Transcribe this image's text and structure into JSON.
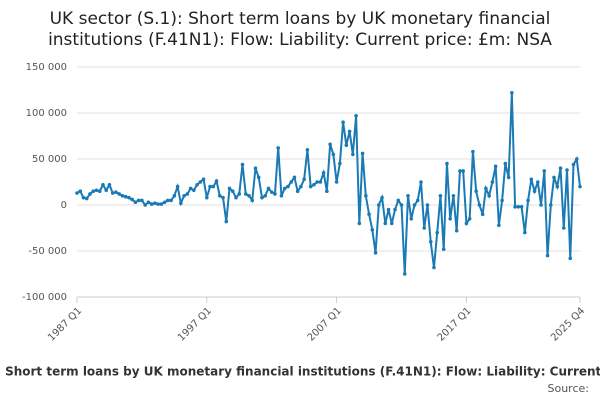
{
  "chart_data": {
    "type": "line",
    "title": [
      "UK sector (S.1): Short term loans by UK monetary financial",
      "institutions (F.41N1): Flow: Liability: Current price: £m: NSA"
    ],
    "source": "Source:",
    "categories": [
      "1987 Q1",
      null,
      null,
      null,
      null,
      null,
      null,
      null,
      null,
      null,
      null,
      null,
      null,
      null,
      null,
      null,
      null,
      null,
      null,
      null,
      null,
      null,
      null,
      null,
      null,
      null,
      null,
      null,
      null,
      null,
      null,
      null,
      null,
      null,
      null,
      null,
      null,
      null,
      null,
      null,
      "1997 Q1",
      null,
      null,
      null,
      null,
      null,
      null,
      null,
      null,
      null,
      null,
      null,
      null,
      null,
      null,
      null,
      null,
      null,
      null,
      null,
      null,
      null,
      null,
      null,
      null,
      null,
      null,
      null,
      null,
      null,
      null,
      null,
      null,
      null,
      null,
      null,
      null,
      null,
      null,
      null,
      "2007 Q1",
      null,
      null,
      null,
      null,
      null,
      null,
      null,
      null,
      null,
      null,
      null,
      null,
      null,
      null,
      null,
      null,
      null,
      null,
      null,
      null,
      null,
      null,
      null,
      null,
      null,
      null,
      null,
      null,
      null,
      null,
      null,
      null,
      null,
      null,
      null,
      null,
      null,
      null,
      null,
      "2017 Q1",
      null,
      null,
      null,
      null,
      null,
      null,
      null,
      null,
      null,
      null,
      null,
      null,
      null,
      null,
      null,
      null,
      null,
      null,
      null,
      null,
      null,
      null,
      null,
      null,
      null,
      null,
      null,
      null,
      null,
      null,
      null,
      null,
      null,
      null,
      "2025 Q4"
    ],
    "series": [
      {
        "name": "UK sector (S.1): Short term loans by UK monetary financial institutions (F.41N1): Flow: Liability: Current price: £m: NSA",
        "color": "#1a7ab5",
        "values": [
          13000,
          15000,
          8000,
          7000,
          12000,
          15000,
          16000,
          15000,
          22000,
          16000,
          22000,
          13000,
          14000,
          12000,
          10000,
          9000,
          8000,
          6000,
          3000,
          5000,
          5000,
          0,
          3000,
          1000,
          2000,
          1000,
          1000,
          3000,
          5000,
          5000,
          10000,
          20000,
          2000,
          10000,
          12000,
          18000,
          16000,
          22000,
          25000,
          28000,
          8000,
          20000,
          20000,
          26000,
          10000,
          8000,
          -18000,
          18000,
          15000,
          8000,
          12000,
          44000,
          12000,
          10000,
          5000,
          40000,
          30000,
          8000,
          10000,
          18000,
          14000,
          12000,
          62000,
          10000,
          18000,
          20000,
          25000,
          30000,
          15000,
          20000,
          28000,
          60000,
          20000,
          22000,
          25000,
          25000,
          35000,
          15000,
          66000,
          55000,
          25000,
          45000,
          90000,
          65000,
          80000,
          55000,
          97000,
          -20000,
          56000,
          10000,
          -10000,
          -27000,
          -52000,
          0,
          8000,
          -20000,
          -5000,
          -20000,
          -5000,
          5000,
          0,
          -75000,
          10000,
          -15000,
          0,
          5000,
          25000,
          -25000,
          0,
          -40000,
          -68000,
          -30000,
          10000,
          -48000,
          45000,
          -15000,
          10000,
          -28000,
          37000,
          37000,
          -20000,
          -15000,
          58000,
          15000,
          0,
          -10000,
          18000,
          10000,
          25000,
          42000,
          -22000,
          5000,
          45000,
          30000,
          122000,
          -2000,
          -2000,
          -2000,
          -30000,
          5000,
          28000,
          15000,
          25000,
          0,
          37000,
          -55000,
          0,
          30000,
          20000,
          40000,
          -25000,
          38000,
          -58000,
          44000,
          50000,
          20000
        ]
      }
    ],
    "ylim": [
      -100000,
      150000
    ],
    "yticks": [
      {
        "value": -100000,
        "label": "-100 000"
      },
      {
        "value": -50000,
        "label": "-50 000"
      },
      0,
      {
        "value": 50000,
        "label": "50 000"
      },
      {
        "value": 100000,
        "label": "100 000"
      },
      {
        "value": 150000,
        "label": "150 000"
      }
    ],
    "grid": true
  }
}
